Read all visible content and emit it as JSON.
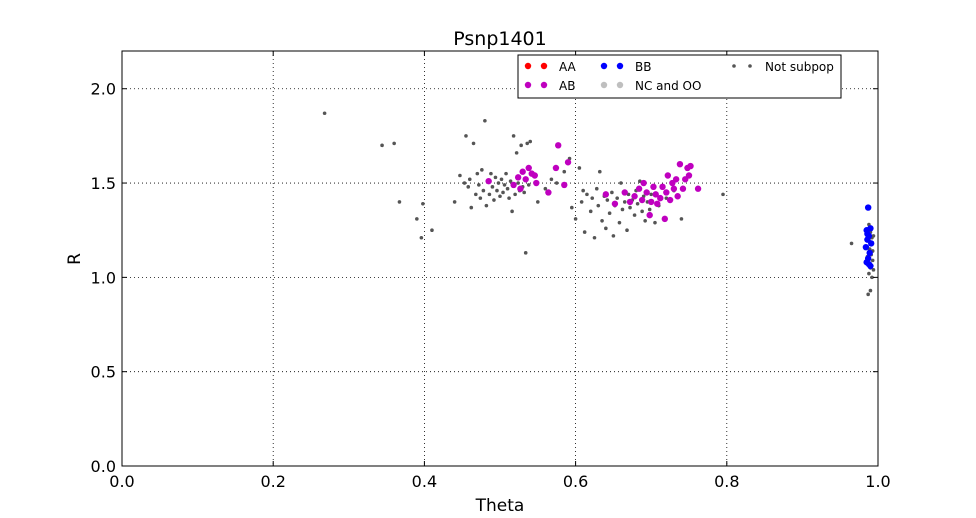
{
  "chart_data": {
    "type": "scatter",
    "title": "Psnp1401",
    "xlabel": "Theta",
    "ylabel": "R",
    "xlim": [
      0.0,
      1.0
    ],
    "ylim": [
      0.0,
      2.2
    ],
    "xticks": [
      0.0,
      0.2,
      0.4,
      0.6,
      0.8,
      1.0
    ],
    "yticks": [
      0.0,
      0.5,
      1.0,
      1.5,
      2.0
    ],
    "xtick_labels": [
      "0.0",
      "0.2",
      "0.4",
      "0.6",
      "0.8",
      "1.0"
    ],
    "ytick_labels": [
      "0.0",
      "0.5",
      "1.0",
      "1.5",
      "2.0"
    ],
    "grid": true,
    "legend_position": "top-right",
    "series": [
      {
        "name": "AA",
        "color": "#ff0000",
        "marker": "large",
        "points": []
      },
      {
        "name": "AB",
        "color": "#bf00bf",
        "marker": "large",
        "points": [
          [
            0.485,
            1.51
          ],
          [
            0.518,
            1.49
          ],
          [
            0.524,
            1.53
          ],
          [
            0.53,
            1.56
          ],
          [
            0.534,
            1.52
          ],
          [
            0.538,
            1.58
          ],
          [
            0.542,
            1.55
          ],
          [
            0.546,
            1.54
          ],
          [
            0.527,
            1.47
          ],
          [
            0.548,
            1.5
          ],
          [
            0.564,
            1.45
          ],
          [
            0.574,
            1.58
          ],
          [
            0.577,
            1.7
          ],
          [
            0.585,
            1.49
          ],
          [
            0.59,
            1.61
          ],
          [
            0.64,
            1.44
          ],
          [
            0.652,
            1.39
          ],
          [
            0.665,
            1.45
          ],
          [
            0.672,
            1.4
          ],
          [
            0.678,
            1.43
          ],
          [
            0.684,
            1.47
          ],
          [
            0.688,
            1.41
          ],
          [
            0.69,
            1.5
          ],
          [
            0.694,
            1.45
          ],
          [
            0.698,
            1.33
          ],
          [
            0.7,
            1.4
          ],
          [
            0.703,
            1.48
          ],
          [
            0.706,
            1.44
          ],
          [
            0.708,
            1.39
          ],
          [
            0.712,
            1.42
          ],
          [
            0.715,
            1.48
          ],
          [
            0.718,
            1.31
          ],
          [
            0.72,
            1.45
          ],
          [
            0.722,
            1.54
          ],
          [
            0.725,
            1.41
          ],
          [
            0.728,
            1.5
          ],
          [
            0.73,
            1.47
          ],
          [
            0.733,
            1.52
          ],
          [
            0.735,
            1.43
          ],
          [
            0.738,
            1.6
          ],
          [
            0.742,
            1.47
          ],
          [
            0.745,
            1.52
          ],
          [
            0.748,
            1.58
          ],
          [
            0.75,
            1.54
          ],
          [
            0.752,
            1.59
          ],
          [
            0.762,
            1.47
          ]
        ]
      },
      {
        "name": "BB",
        "color": "#0000ff",
        "marker": "large",
        "points": [
          [
            0.987,
            1.37
          ],
          [
            0.985,
            1.25
          ],
          [
            0.99,
            1.26
          ],
          [
            0.988,
            1.22
          ],
          [
            0.986,
            1.2
          ],
          [
            0.984,
            1.16
          ],
          [
            0.989,
            1.13
          ],
          [
            0.987,
            1.1
          ],
          [
            0.985,
            1.08
          ],
          [
            0.988,
            1.07
          ],
          [
            0.99,
            1.06
          ],
          [
            0.986,
            1.23
          ],
          [
            0.991,
            1.18
          ]
        ]
      },
      {
        "name": "NC and OO",
        "color": "#bfbfbf",
        "marker": "large",
        "points": []
      },
      {
        "name": "Not subpop",
        "color": "#555555",
        "marker": "small",
        "points": [
          [
            0.268,
            1.87
          ],
          [
            0.344,
            1.7
          ],
          [
            0.36,
            1.71
          ],
          [
            0.367,
            1.4
          ],
          [
            0.39,
            1.31
          ],
          [
            0.398,
            1.39
          ],
          [
            0.396,
            1.21
          ],
          [
            0.41,
            1.25
          ],
          [
            0.44,
            1.4
          ],
          [
            0.447,
            1.54
          ],
          [
            0.453,
            1.5
          ],
          [
            0.455,
            1.75
          ],
          [
            0.458,
            1.48
          ],
          [
            0.46,
            1.52
          ],
          [
            0.462,
            1.37
          ],
          [
            0.465,
            1.71
          ],
          [
            0.468,
            1.44
          ],
          [
            0.47,
            1.55
          ],
          [
            0.472,
            1.49
          ],
          [
            0.474,
            1.42
          ],
          [
            0.476,
            1.57
          ],
          [
            0.478,
            1.46
          ],
          [
            0.48,
            1.83
          ],
          [
            0.482,
            1.38
          ],
          [
            0.484,
            1.51
          ],
          [
            0.486,
            1.44
          ],
          [
            0.488,
            1.55
          ],
          [
            0.49,
            1.48
          ],
          [
            0.492,
            1.41
          ],
          [
            0.494,
            1.53
          ],
          [
            0.496,
            1.46
          ],
          [
            0.498,
            1.5
          ],
          [
            0.5,
            1.43
          ],
          [
            0.502,
            1.52
          ],
          [
            0.504,
            1.45
          ],
          [
            0.506,
            1.49
          ],
          [
            0.508,
            1.55
          ],
          [
            0.51,
            1.47
          ],
          [
            0.512,
            1.42
          ],
          [
            0.514,
            1.51
          ],
          [
            0.516,
            1.35
          ],
          [
            0.518,
            1.75
          ],
          [
            0.52,
            1.44
          ],
          [
            0.522,
            1.66
          ],
          [
            0.524,
            1.5
          ],
          [
            0.526,
            1.46
          ],
          [
            0.528,
            1.7
          ],
          [
            0.53,
            1.48
          ],
          [
            0.532,
            1.45
          ],
          [
            0.534,
            1.13
          ],
          [
            0.536,
            1.71
          ],
          [
            0.538,
            1.49
          ],
          [
            0.54,
            1.72
          ],
          [
            0.55,
            1.4
          ],
          [
            0.56,
            1.47
          ],
          [
            0.568,
            1.52
          ],
          [
            0.575,
            1.5
          ],
          [
            0.585,
            1.56
          ],
          [
            0.592,
            1.63
          ],
          [
            0.595,
            1.37
          ],
          [
            0.6,
            1.31
          ],
          [
            0.605,
            1.58
          ],
          [
            0.608,
            1.4
          ],
          [
            0.61,
            1.46
          ],
          [
            0.612,
            1.24
          ],
          [
            0.615,
            1.44
          ],
          [
            0.62,
            1.35
          ],
          [
            0.622,
            1.42
          ],
          [
            0.625,
            1.21
          ],
          [
            0.628,
            1.47
          ],
          [
            0.63,
            1.38
          ],
          [
            0.632,
            1.56
          ],
          [
            0.635,
            1.3
          ],
          [
            0.638,
            1.43
          ],
          [
            0.64,
            1.26
          ],
          [
            0.642,
            1.41
          ],
          [
            0.645,
            1.34
          ],
          [
            0.648,
            1.45
          ],
          [
            0.65,
            1.22
          ],
          [
            0.652,
            1.38
          ],
          [
            0.655,
            1.42
          ],
          [
            0.658,
            1.29
          ],
          [
            0.66,
            1.5
          ],
          [
            0.662,
            1.36
          ],
          [
            0.665,
            1.4
          ],
          [
            0.668,
            1.25
          ],
          [
            0.67,
            1.44
          ],
          [
            0.672,
            1.37
          ],
          [
            0.675,
            1.41
          ],
          [
            0.678,
            1.33
          ],
          [
            0.68,
            1.46
          ],
          [
            0.682,
            1.39
          ],
          [
            0.685,
            1.51
          ],
          [
            0.688,
            1.35
          ],
          [
            0.69,
            1.43
          ],
          [
            0.692,
            1.3
          ],
          [
            0.695,
            1.4
          ],
          [
            0.698,
            1.36
          ],
          [
            0.7,
            1.44
          ],
          [
            0.705,
            1.29
          ],
          [
            0.71,
            1.38
          ],
          [
            0.72,
            1.42
          ],
          [
            0.73,
            1.46
          ],
          [
            0.74,
            1.31
          ],
          [
            0.795,
            1.44
          ],
          [
            0.965,
            1.18
          ],
          [
            0.988,
            1.28
          ],
          [
            0.99,
            1.24
          ],
          [
            0.992,
            1.21
          ],
          [
            0.994,
            1.22
          ],
          [
            0.989,
            1.15
          ],
          [
            0.991,
            1.12
          ],
          [
            0.993,
            1.09
          ],
          [
            0.99,
            1.05
          ],
          [
            0.988,
            1.02
          ],
          [
            0.992,
            1.0
          ],
          [
            0.994,
            1.04
          ],
          [
            0.986,
            1.11
          ],
          [
            0.99,
            0.93
          ],
          [
            0.987,
            0.91
          ],
          [
            0.993,
            1.14
          ],
          [
            0.989,
            1.19
          ]
        ]
      }
    ]
  }
}
